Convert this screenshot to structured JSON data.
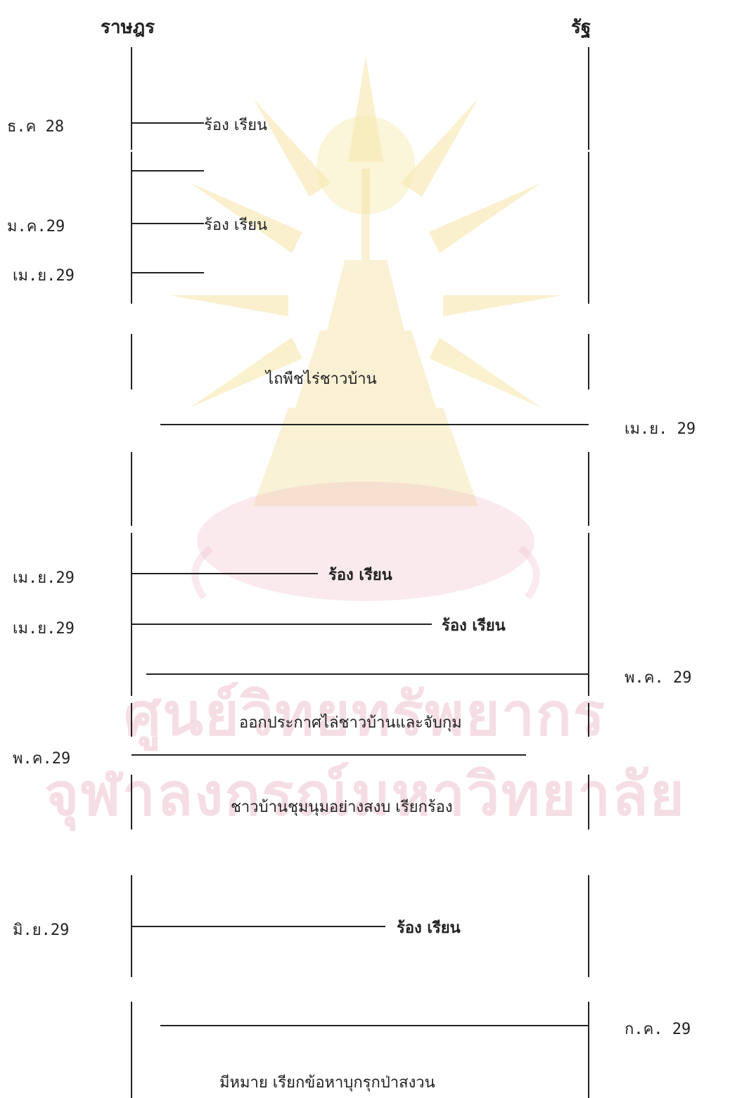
{
  "headers": {
    "left": "ราษฎร",
    "right": "รัฐ"
  },
  "colors": {
    "line": "#222222",
    "watermark_seal": "#f3dc86",
    "watermark_text": "#e3a3b0"
  },
  "watermark": {
    "line1": "ศูนย์วิทยทรัพยากร",
    "line2": "จุฬาลงกรณ์มหาวิทยาลัย",
    "seal": "chulalongkorn-seal-icon"
  },
  "events": [
    {
      "date": "ธ.ค 28",
      "label": "ร้อง เรียน"
    },
    {
      "date": "",
      "label": ""
    },
    {
      "date": "ม.ค.29",
      "label": "ร้อง เรียน"
    },
    {
      "date": "เม.ย.29",
      "label": ""
    },
    {
      "date": "เม.ย. 29",
      "label": "ไถพืชไร่ชาวบ้าน"
    },
    {
      "date": "เม.ย.29",
      "label": "ร้อง เรียน"
    },
    {
      "date": "เม.ย.29",
      "label": "ร้อง เรียน"
    },
    {
      "date": "พ.ค. 29",
      "label": "ออกประกาศไล่ชาวบ้านและจับกุม"
    },
    {
      "date": "พ.ค.29",
      "label": "ชาวบ้านชุมนุมอย่างสงบ เรียกร้อง"
    },
    {
      "date": "มิ.ย.29",
      "label": "ร้อง เรียน"
    },
    {
      "date": "ก.ค. 29",
      "label": "มีหมาย เรียกข้อหาบุกรุกป่าสงวน"
    }
  ]
}
